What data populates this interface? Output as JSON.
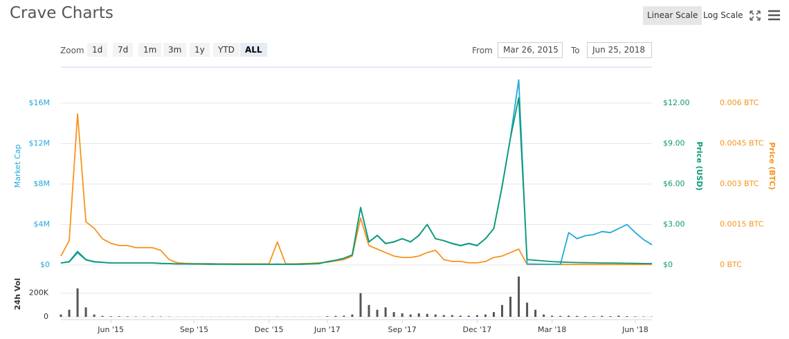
{
  "header": {
    "title": "Crave Charts",
    "scale_buttons": [
      "Linear Scale",
      "Log Scale"
    ],
    "active_scale": 0
  },
  "zoom": {
    "label": "Zoom",
    "buttons": [
      "1d",
      "7d",
      "1m",
      "3m",
      "1y",
      "YTD",
      "ALL"
    ],
    "active": 6
  },
  "range": {
    "from_label": "From",
    "from": "Mar 26, 2015",
    "to_label": "To",
    "to": "Jun 25, 2018"
  },
  "chart_data": {
    "type": "line",
    "categories": [
      null,
      null,
      null,
      null,
      null,
      null,
      "Jun '15",
      null,
      null,
      null,
      null,
      null,
      null,
      null,
      null,
      null,
      "Sep '15",
      null,
      null,
      null,
      null,
      null,
      null,
      null,
      null,
      "Dec '15",
      null,
      null,
      null,
      null,
      null,
      null,
      "Jun '17",
      null,
      null,
      null,
      null,
      null,
      null,
      null,
      null,
      "Sep '17",
      null,
      null,
      null,
      null,
      null,
      null,
      null,
      null,
      "Dec '17",
      null,
      null,
      null,
      null,
      null,
      null,
      null,
      null,
      "Mar '18",
      null,
      null,
      null,
      null,
      null,
      null,
      null,
      null,
      null,
      "Jun '18",
      null,
      null
    ],
    "ylim": [
      0,
      19350000
    ],
    "yticks": [
      {
        "value": 0,
        "label": "$0"
      },
      {
        "value": 4000000,
        "label": "$4M"
      },
      {
        "value": 8000000,
        "label": "$8M"
      },
      {
        "value": 12000000,
        "label": "$12M"
      },
      {
        "value": 16000000,
        "label": "$16M"
      }
    ],
    "y2lim": [
      0,
      14.51
    ],
    "y2ticks": [
      {
        "value": 0,
        "label": "$0"
      },
      {
        "value": 3,
        "label": "$3.00"
      },
      {
        "value": 6,
        "label": "$6.00"
      },
      {
        "value": 9,
        "label": "$9.00"
      },
      {
        "value": 12,
        "label": "$12.00"
      }
    ],
    "y3lim": [
      0,
      0.007256
    ],
    "y3ticks": [
      {
        "value": 0,
        "label": "0 BTC"
      },
      {
        "value": 0.0015,
        "label": "0.0015 BTC"
      },
      {
        "value": 0.003,
        "label": "0.003 BTC"
      },
      {
        "value": 0.0045,
        "label": "0.0045 BTC"
      },
      {
        "value": 0.006,
        "label": "0.006 BTC"
      }
    ],
    "grid": true,
    "series": [
      {
        "name": "Market Cap",
        "color": "#1fa9d8",
        "axis": "y",
        "values": [
          200000,
          300000,
          1200000,
          500000,
          300000,
          250000,
          200000,
          200000,
          200000,
          200000,
          200000,
          200000,
          150000,
          130000,
          100000,
          100000,
          90000,
          90000,
          80000,
          80000,
          80000,
          70000,
          70000,
          70000,
          70000,
          70000,
          80000,
          70000,
          70000,
          80000,
          100000,
          130000,
          330000,
          470000,
          670000,
          1000000,
          5700000,
          2300000,
          2900000,
          2100000,
          2300000,
          2600000,
          2300000,
          2900000,
          4000000,
          2600000,
          2400000,
          2100000,
          1900000,
          2100000,
          1900000,
          2600000,
          3600000,
          7800000,
          12600000,
          18300000,
          100000,
          80000,
          70000,
          60000,
          60000,
          3200000,
          2600000,
          2900000,
          3000000,
          3300000,
          3200000,
          3600000,
          4000000,
          3200000,
          2500000,
          2000000
        ]
      },
      {
        "name": "Price (USD)",
        "color": "#0d9a74",
        "axis": "y2",
        "values": [
          0.15,
          0.25,
          1.0,
          0.4,
          0.25,
          0.2,
          0.15,
          0.15,
          0.15,
          0.15,
          0.15,
          0.15,
          0.12,
          0.1,
          0.08,
          0.08,
          0.07,
          0.07,
          0.06,
          0.06,
          0.06,
          0.05,
          0.05,
          0.05,
          0.05,
          0.05,
          0.06,
          0.05,
          0.05,
          0.06,
          0.08,
          0.1,
          0.25,
          0.35,
          0.5,
          0.75,
          4.25,
          1.7,
          2.2,
          1.6,
          1.7,
          1.95,
          1.7,
          2.2,
          3.0,
          1.95,
          1.8,
          1.6,
          1.45,
          1.6,
          1.45,
          1.95,
          2.7,
          5.8,
          9.4,
          12.4,
          0.4,
          0.35,
          0.3,
          0.25,
          0.22,
          0.2,
          0.18,
          0.17,
          0.16,
          0.15,
          0.15,
          0.14,
          0.13,
          0.12,
          0.11,
          0.1
        ]
      },
      {
        "name": "Price (BTC)",
        "color": "#f7931a",
        "axis": "y3",
        "values": [
          0.00033,
          0.0009,
          0.0056,
          0.0016,
          0.00136,
          0.00097,
          0.0008,
          0.00072,
          0.00072,
          0.00064,
          0.00064,
          0.00064,
          0.00054,
          0.0002,
          8e-05,
          6e-05,
          5e-05,
          5e-05,
          5e-05,
          4e-05,
          4e-05,
          4e-05,
          4e-05,
          4e-05,
          4e-05,
          4e-05,
          0.00085,
          4e-05,
          4e-05,
          5e-05,
          6e-05,
          8e-05,
          0.0001,
          0.00015,
          0.0002,
          0.00033,
          0.00174,
          0.00072,
          0.00059,
          0.00046,
          0.00033,
          0.00028,
          0.00028,
          0.00033,
          0.00046,
          0.00054,
          0.0002,
          0.00013,
          0.00013,
          8e-05,
          8e-05,
          0.00013,
          0.00028,
          0.00033,
          0.00046,
          0.00059,
          2e-05,
          2e-05,
          2e-05,
          2e-05,
          2e-05,
          2e-05,
          2e-05,
          2e-05,
          2e-05,
          2e-05,
          2e-05,
          2e-05,
          2e-05,
          2e-05,
          2e-05,
          2e-05
        ]
      }
    ],
    "volume": {
      "label": "24h Vol",
      "color": "#555555",
      "ylim": [
        0,
        350000
      ],
      "yticks": [
        0,
        {
          "value": 200000,
          "label": "200K"
        }
      ],
      "values": [
        20000,
        60000,
        240000,
        80000,
        20000,
        8000,
        5000,
        5000,
        4000,
        3000,
        3000,
        3000,
        3000,
        2000,
        1000,
        1000,
        1000,
        1000,
        1000,
        1000,
        1000,
        1000,
        1000,
        1000,
        1000,
        1000,
        2000,
        1000,
        1000,
        1000,
        1000,
        1000,
        5000,
        8000,
        10000,
        20000,
        200000,
        100000,
        60000,
        80000,
        40000,
        30000,
        20000,
        30000,
        25000,
        20000,
        15000,
        15000,
        10000,
        10000,
        15000,
        20000,
        40000,
        100000,
        170000,
        340000,
        120000,
        60000,
        20000,
        10000,
        8000,
        10000,
        8000,
        6000,
        5000,
        8000,
        6000,
        10000,
        6000,
        4000,
        3000,
        2000
      ]
    }
  }
}
